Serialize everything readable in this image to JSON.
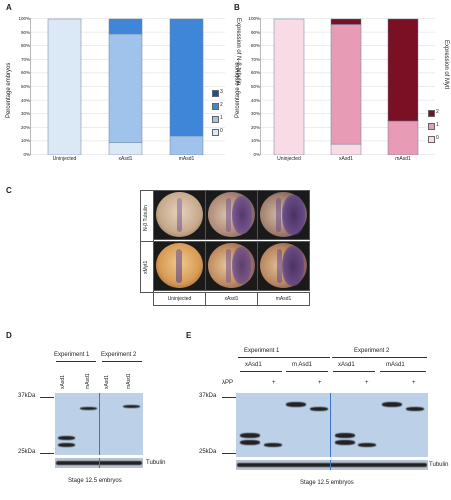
{
  "panelA": {
    "letter": "A",
    "ylabel": "Percentage embryos",
    "right_label": "Expression of N-β tubulin",
    "legend": [
      "3",
      "2",
      "1",
      "0"
    ],
    "yticks": [
      "100%",
      "90%",
      "80%",
      "70%",
      "60%",
      "50%",
      "40%",
      "30%",
      "20%",
      "10%",
      "0%"
    ],
    "colors": [
      "#1f4f8f",
      "#3f86d8",
      "#9fc3ea",
      "#dbe9f7"
    ]
  },
  "panelB": {
    "letter": "B",
    "ylabel": "Percentage embryos",
    "right_label": "Expression of MytI",
    "legend": [
      "2",
      "1",
      "0"
    ],
    "yticks": [
      "100%",
      "90%",
      "80%",
      "70%",
      "60%",
      "50%",
      "40%",
      "30%",
      "20%",
      "10%",
      "0%"
    ],
    "colors": [
      "#7b0f24",
      "#e79bb5",
      "#f9dbe6"
    ]
  },
  "chart_data": [
    {
      "type": "bar",
      "stacked": true,
      "categories": [
        "Uninjected",
        "xAsd1",
        "mAsd1"
      ],
      "series": [
        {
          "name": "0",
          "values": [
            100,
            9,
            0
          ]
        },
        {
          "name": "1",
          "values": [
            0,
            80,
            14
          ]
        },
        {
          "name": "2",
          "values": [
            0,
            11,
            86
          ]
        },
        {
          "name": "3",
          "values": [
            0,
            0,
            0
          ]
        }
      ],
      "ylabel": "Percentage embryos",
      "ylim": [
        0,
        100
      ],
      "legend": "right"
    },
    {
      "type": "bar",
      "stacked": true,
      "categories": [
        "Uninjected",
        "xAsd1",
        "mAsd1"
      ],
      "series": [
        {
          "name": "0",
          "values": [
            100,
            8,
            0
          ]
        },
        {
          "name": "1",
          "values": [
            0,
            88,
            25
          ]
        },
        {
          "name": "2",
          "values": [
            0,
            4,
            75
          ]
        }
      ],
      "ylabel": "Percentage embryos",
      "ylim": [
        0,
        100
      ],
      "legend": "right"
    }
  ],
  "panelC": {
    "letter": "C",
    "row_labels": [
      "N-β Tubulin",
      "xMyt1"
    ],
    "col_labels": [
      "Uninjected",
      "xAsd1",
      "mAsd1"
    ]
  },
  "panelD": {
    "letter": "D",
    "exp1": "Experiment 1",
    "exp2": "Experiment 2",
    "lanes": [
      "xAsd1",
      "mAsd1",
      "xAsd1",
      "mAsd1"
    ],
    "mw_high": "37kDa",
    "mw_low": "25kDa",
    "loading": "Tubulin",
    "caption": "Stage 12.5 embryos"
  },
  "panelE": {
    "letter": "E",
    "exp1": "Experiment 1",
    "exp2": "Experiment 2",
    "groups": [
      "xAsd1",
      "m Asd1",
      "xAsd1",
      "mAsd1"
    ],
    "lpp_label": "λPP",
    "plus": "+",
    "mw_high": "37kDa",
    "mw_low": "25kDa",
    "loading": "Tubulin",
    "caption": "Stage 12.5 embryos"
  }
}
